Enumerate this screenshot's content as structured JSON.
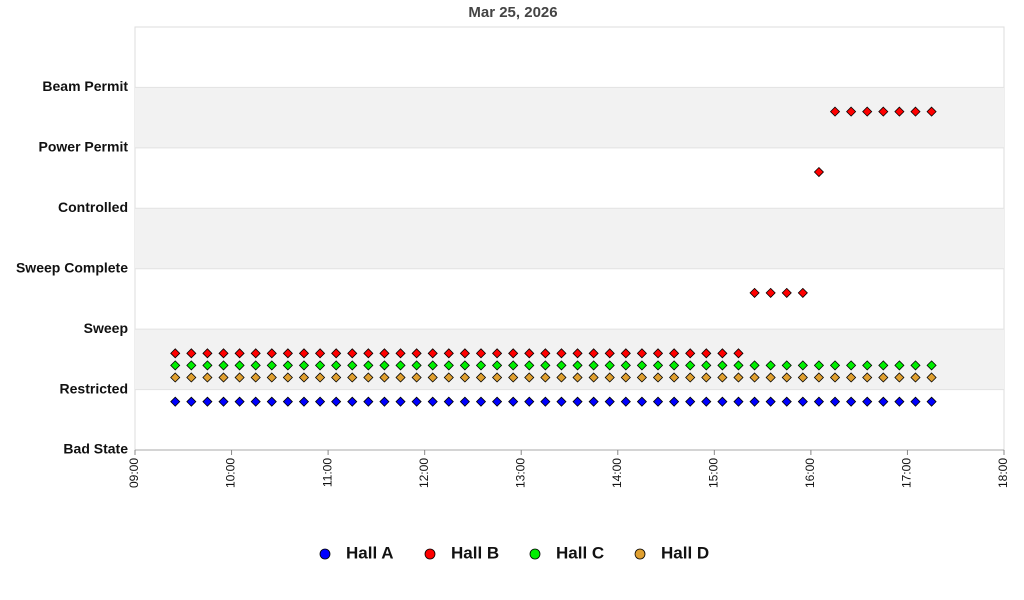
{
  "chart_data": {
    "type": "scatter",
    "title": "Mar 25, 2026",
    "x": [
      "09:25",
      "09:35",
      "09:45",
      "09:55",
      "10:05",
      "10:15",
      "10:25",
      "10:35",
      "10:45",
      "10:55",
      "11:05",
      "11:15",
      "11:25",
      "11:35",
      "11:45",
      "11:55",
      "12:05",
      "12:15",
      "12:25",
      "12:35",
      "12:45",
      "12:55",
      "13:05",
      "13:15",
      "13:25",
      "13:35",
      "13:45",
      "13:55",
      "14:05",
      "14:15",
      "14:25",
      "14:35",
      "14:45",
      "14:55",
      "15:05",
      "15:15",
      "15:25",
      "15:35",
      "15:45",
      "15:55",
      "16:05",
      "16:15",
      "16:25",
      "16:35",
      "16:45",
      "16:55",
      "17:05",
      "17:15"
    ],
    "xlim": [
      "09:00",
      "18:00"
    ],
    "xticks": [
      "09:00",
      "10:00",
      "11:00",
      "12:00",
      "13:00",
      "14:00",
      "15:00",
      "16:00",
      "17:00",
      "18:00"
    ],
    "ylim": [
      0,
      7
    ],
    "yticks": [
      {
        "value": 0,
        "label": "Bad State"
      },
      {
        "value": 1,
        "label": "Restricted"
      },
      {
        "value": 2,
        "label": "Sweep"
      },
      {
        "value": 3,
        "label": "Sweep Complete"
      },
      {
        "value": 4,
        "label": "Controlled"
      },
      {
        "value": 5,
        "label": "Power Permit"
      },
      {
        "value": 6,
        "label": "Beam Permit"
      }
    ],
    "grid": true,
    "legend": "bottom",
    "series": [
      {
        "name": "Hall A",
        "color": "#0000ff",
        "values": [
          0.8,
          0.8,
          0.8,
          0.8,
          0.8,
          0.8,
          0.8,
          0.8,
          0.8,
          0.8,
          0.8,
          0.8,
          0.8,
          0.8,
          0.8,
          0.8,
          0.8,
          0.8,
          0.8,
          0.8,
          0.8,
          0.8,
          0.8,
          0.8,
          0.8,
          0.8,
          0.8,
          0.8,
          0.8,
          0.8,
          0.8,
          0.8,
          0.8,
          0.8,
          0.8,
          0.8,
          0.8,
          0.8,
          0.8,
          0.8,
          0.8,
          0.8,
          0.8,
          0.8,
          0.8,
          0.8,
          0.8,
          0.8
        ]
      },
      {
        "name": "Hall B",
        "color": "#ff0000",
        "values": [
          1.6,
          1.6,
          1.6,
          1.6,
          1.6,
          1.6,
          1.6,
          1.6,
          1.6,
          1.6,
          1.6,
          1.6,
          1.6,
          1.6,
          1.6,
          1.6,
          1.6,
          1.6,
          1.6,
          1.6,
          1.6,
          1.6,
          1.6,
          1.6,
          1.6,
          1.6,
          1.6,
          1.6,
          1.6,
          1.6,
          1.6,
          1.6,
          1.6,
          1.6,
          1.6,
          1.6,
          2.6,
          2.6,
          2.6,
          2.6,
          4.6,
          5.6,
          5.6,
          5.6,
          5.6,
          5.6,
          5.6,
          5.6
        ]
      },
      {
        "name": "Hall C",
        "color": "#00ee00",
        "values": [
          1.4,
          1.4,
          1.4,
          1.4,
          1.4,
          1.4,
          1.4,
          1.4,
          1.4,
          1.4,
          1.4,
          1.4,
          1.4,
          1.4,
          1.4,
          1.4,
          1.4,
          1.4,
          1.4,
          1.4,
          1.4,
          1.4,
          1.4,
          1.4,
          1.4,
          1.4,
          1.4,
          1.4,
          1.4,
          1.4,
          1.4,
          1.4,
          1.4,
          1.4,
          1.4,
          1.4,
          1.4,
          1.4,
          1.4,
          1.4,
          1.4,
          1.4,
          1.4,
          1.4,
          1.4,
          1.4,
          1.4,
          1.4
        ]
      },
      {
        "name": "Hall D",
        "color": "#e0a030",
        "values": [
          1.2,
          1.2,
          1.2,
          1.2,
          1.2,
          1.2,
          1.2,
          1.2,
          1.2,
          1.2,
          1.2,
          1.2,
          1.2,
          1.2,
          1.2,
          1.2,
          1.2,
          1.2,
          1.2,
          1.2,
          1.2,
          1.2,
          1.2,
          1.2,
          1.2,
          1.2,
          1.2,
          1.2,
          1.2,
          1.2,
          1.2,
          1.2,
          1.2,
          1.2,
          1.2,
          1.2,
          1.2,
          1.2,
          1.2,
          1.2,
          1.2,
          1.2,
          1.2,
          1.2,
          1.2,
          1.2,
          1.2,
          1.2
        ]
      }
    ]
  }
}
